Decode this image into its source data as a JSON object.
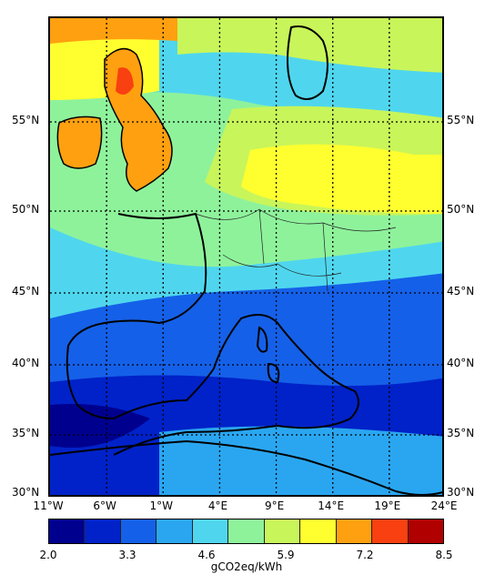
{
  "map": {
    "lat_labels": [
      {
        "text": "55°N",
        "lat": 55
      },
      {
        "text": "50°N",
        "lat": 50
      },
      {
        "text": "45°N",
        "lat": 45
      },
      {
        "text": "40°N",
        "lat": 40
      },
      {
        "text": "35°N",
        "lat": 35
      },
      {
        "text": "30°N",
        "lat": 30
      }
    ],
    "lon_labels": [
      {
        "text": "11°W",
        "lon": -11
      },
      {
        "text": "6°W",
        "lon": -6
      },
      {
        "text": "1°W",
        "lon": -1
      },
      {
        "text": "4°E",
        "lon": 4
      },
      {
        "text": "9°E",
        "lon": 9
      },
      {
        "text": "14°E",
        "lon": 14
      },
      {
        "text": "19°E",
        "lon": 19
      },
      {
        "text": "24°E",
        "lon": 24
      }
    ]
  },
  "colorbar": {
    "ticks": [
      {
        "text": "2.0",
        "value": 2.0
      },
      {
        "text": "3.3",
        "value": 3.3
      },
      {
        "text": "4.6",
        "value": 4.6
      },
      {
        "text": "5.9",
        "value": 5.9
      },
      {
        "text": "7.2",
        "value": 7.2
      },
      {
        "text": "8.5",
        "value": 8.5
      }
    ],
    "range": [
      2.0,
      8.5
    ],
    "colors": [
      "#00008f",
      "#0022c8",
      "#1560e8",
      "#2aa6f0",
      "#4fd6ee",
      "#8ef29b",
      "#c8f55a",
      "#ffff30",
      "#ffa010",
      "#f84010",
      "#b00000"
    ],
    "unit_label": "gCO2eq/kWh"
  }
}
